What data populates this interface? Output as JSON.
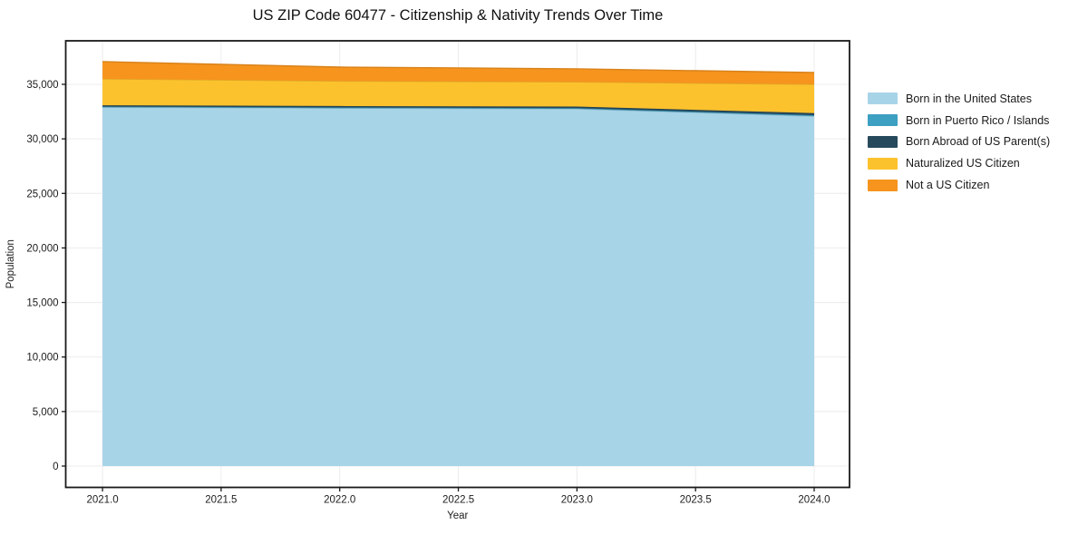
{
  "chart": {
    "title": "US ZIP Code 60477 - Citizenship & Nativity Trends Over Time",
    "xlabel": "Year",
    "ylabel": "Population"
  },
  "chart_data": {
    "type": "area",
    "stacked": true,
    "title": "US ZIP Code 60477 - Citizenship & Nativity Trends Over Time",
    "xlabel": "Year",
    "ylabel": "Population",
    "grid": true,
    "legend_position": "right-outside",
    "x": [
      2021,
      2022,
      2023,
      2024
    ],
    "xlim": [
      2020.845,
      2024.149
    ],
    "ylim": [
      -1954,
      38990
    ],
    "x_ticks": {
      "values": [
        2021.0,
        2021.5,
        2022.0,
        2022.5,
        2023.0,
        2023.5,
        2024.0
      ],
      "labels": [
        "2021.0",
        "2021.5",
        "2022.0",
        "2022.5",
        "2023.0",
        "2023.5",
        "2024.0"
      ]
    },
    "y_ticks": {
      "values": [
        0,
        5000,
        10000,
        15000,
        20000,
        25000,
        30000,
        35000
      ],
      "labels": [
        "0",
        "5,000",
        "10,000",
        "15,000",
        "20,000",
        "25,000",
        "30,000",
        "35,000"
      ]
    },
    "series": [
      {
        "name": "Born in the United States",
        "color": "#a8d4e8",
        "values": [
          32900,
          32820,
          32750,
          32080
        ]
      },
      {
        "name": "Born in Puerto Rico / Islands",
        "color": "#3d9fc2",
        "values": [
          60,
          60,
          70,
          90
        ]
      },
      {
        "name": "Born Abroad of US Parent(s)",
        "color": "#27495c",
        "values": [
          120,
          130,
          140,
          190
        ]
      },
      {
        "name": "Naturalized US Citizen",
        "color": "#fcc22d",
        "values": [
          2420,
          2290,
          2260,
          2640
        ]
      },
      {
        "name": "Not a US Citizen",
        "color": "#f6941e",
        "values": [
          1580,
          1280,
          1200,
          1080
        ]
      }
    ],
    "totals": [
      37080,
      36580,
      36420,
      36080
    ],
    "axis_colors": {
      "spine": "#1a1a1a",
      "grid": "#ececec",
      "tick": "#1a1a1a"
    }
  }
}
